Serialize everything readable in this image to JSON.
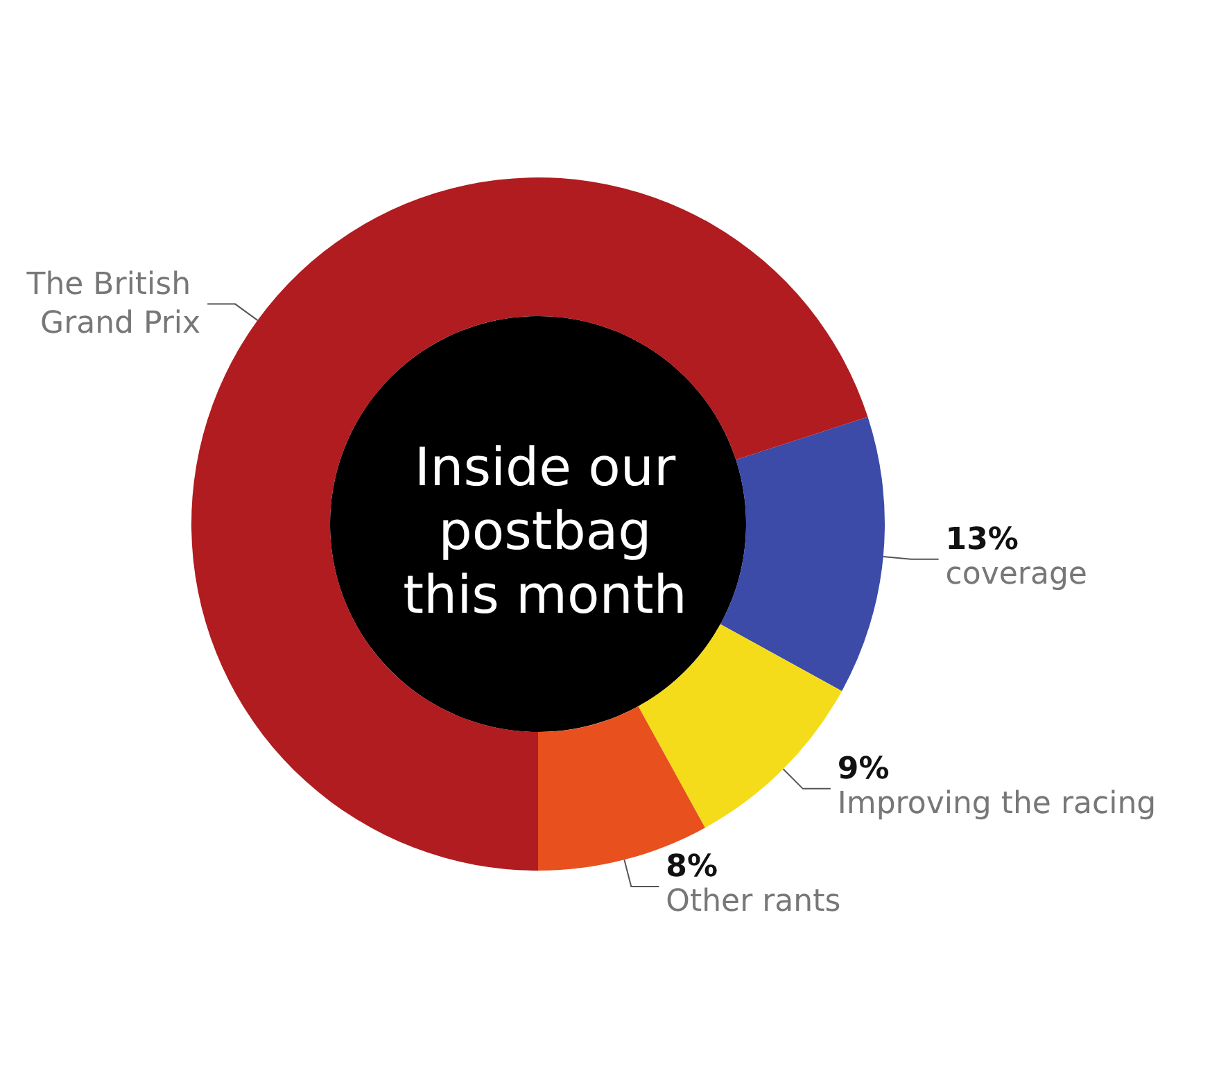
{
  "chart_data": {
    "type": "donut",
    "title": "Inside our postbag this month",
    "categories": [
      "coverage",
      "Improving the racing",
      "Other rants",
      "The British Grand Prix"
    ],
    "values": [
      13,
      9,
      8,
      70
    ],
    "value_labels": [
      "13%",
      "9%",
      "8%",
      null
    ],
    "colors": [
      "#3c4aa8",
      "#f5dc1a",
      "#e8501e",
      "#b01c1f"
    ]
  }
}
